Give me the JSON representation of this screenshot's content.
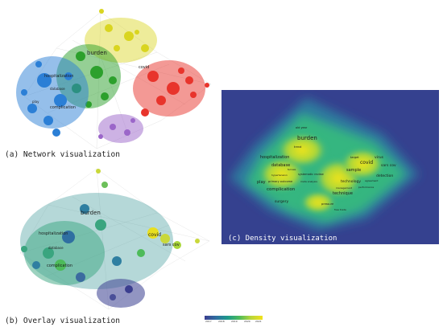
{
  "panels": {
    "network": {
      "caption": "(a) Network visualization"
    },
    "overlay": {
      "caption": "(b) Overlay visualization"
    },
    "density": {
      "caption": "(c) Density visualization"
    }
  },
  "network_terms": {
    "burden": "burden",
    "hospitalization": "hospitalization",
    "covid": "covid",
    "complication": "complication",
    "database": "database",
    "play": "play"
  },
  "overlay_terms": {
    "burden": "burden",
    "hospitalization": "hospitalization",
    "covid": "covid",
    "sars_cov": "sars cov",
    "complication": "complication",
    "database": "database"
  },
  "density_terms": {
    "burden": "burden",
    "hospitalization": "hospitalization",
    "database": "database",
    "complication": "complication",
    "play": "play",
    "surgery": "surgery",
    "covid": "covid",
    "sample": "sample",
    "technique": "technique",
    "technology": "technology",
    "virus": "virus",
    "sars_cov": "sars cov",
    "detection": "detection",
    "primary_outcome": "primary outcome",
    "systematic_review": "systematic review",
    "hypertension": "hypertension",
    "meta_analysis": "meta analysis",
    "trend": "trend",
    "old_year": "old year",
    "female": "female",
    "pressure": "pressure",
    "free_trade": "free trade",
    "target": "target",
    "performance": "performance",
    "agreement": "agreement",
    "management": "management"
  },
  "scale": {
    "ticks": [
      "2017",
      "2018",
      "2019",
      "2020",
      "2021"
    ]
  },
  "colors": {
    "cluster_yellow": "#d9d520",
    "cluster_red": "#e8342c",
    "cluster_green": "#2ca02c",
    "cluster_blue": "#2b7fd6",
    "cluster_purple": "#9b66c9",
    "density_bg": "#35418f",
    "density_hot": "#f0e41a",
    "density_mid": "#34b680"
  }
}
